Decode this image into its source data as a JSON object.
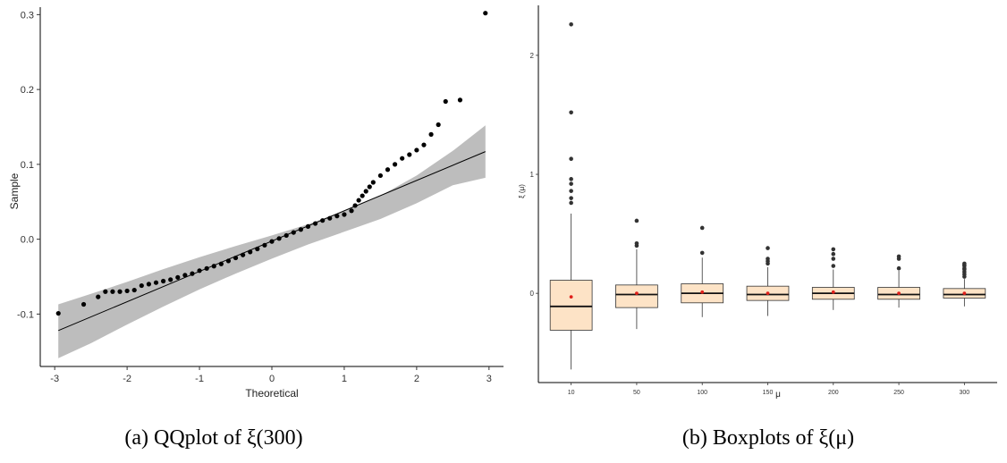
{
  "captions": {
    "left": "(a) QQplot of ξ(300)",
    "right": "(b) Boxplots of ξ(μ)"
  },
  "colors": {
    "points": "#000000",
    "band": "#bdbdbd",
    "line": "#000000",
    "box_fill": "#fde3c6",
    "mean": "#e0201b",
    "outlier": "#333333"
  },
  "chart_data": [
    {
      "type": "scatter",
      "xlabel": "Theoretical",
      "ylabel": "Sample",
      "xlim": [
        -3.2,
        3.2
      ],
      "ylim": [
        -0.17,
        0.31
      ],
      "xticks": [
        -3,
        -2,
        -1,
        0,
        1,
        2,
        3
      ],
      "yticks": [
        -0.1,
        0.0,
        0.1,
        0.2,
        0.3
      ],
      "ytick_labels": [
        "-0.1",
        "0.0",
        "0.1",
        "0.2",
        "0.3"
      ],
      "grid": false,
      "reference_line": {
        "x": [
          -2.95,
          2.95
        ],
        "y": [
          -0.122,
          0.117
        ]
      },
      "confidence_band": {
        "x": [
          -2.95,
          -2.5,
          -2.0,
          -1.5,
          -1.0,
          -0.5,
          0.0,
          0.5,
          1.0,
          1.5,
          2.0,
          2.5,
          2.95
        ],
        "upper": [
          -0.087,
          -0.073,
          -0.057,
          -0.04,
          -0.024,
          -0.009,
          0.005,
          0.02,
          0.038,
          0.058,
          0.085,
          0.118,
          0.152
        ],
        "lower": [
          -0.159,
          -0.139,
          -0.114,
          -0.09,
          -0.067,
          -0.046,
          -0.026,
          -0.007,
          0.01,
          0.027,
          0.048,
          0.072,
          0.082
        ]
      },
      "points": [
        [
          -2.95,
          -0.099
        ],
        [
          -2.6,
          -0.087
        ],
        [
          -2.4,
          -0.077
        ],
        [
          -2.3,
          -0.07
        ],
        [
          -2.2,
          -0.07
        ],
        [
          -2.1,
          -0.07
        ],
        [
          -2.0,
          -0.069
        ],
        [
          -1.9,
          -0.068
        ],
        [
          -1.8,
          -0.062
        ],
        [
          -1.7,
          -0.06
        ],
        [
          -1.6,
          -0.058
        ],
        [
          -1.5,
          -0.056
        ],
        [
          -1.4,
          -0.054
        ],
        [
          -1.3,
          -0.051
        ],
        [
          -1.2,
          -0.048
        ],
        [
          -1.1,
          -0.046
        ],
        [
          -1.0,
          -0.042
        ],
        [
          -0.9,
          -0.039
        ],
        [
          -0.8,
          -0.036
        ],
        [
          -0.7,
          -0.033
        ],
        [
          -0.6,
          -0.029
        ],
        [
          -0.5,
          -0.025
        ],
        [
          -0.4,
          -0.021
        ],
        [
          -0.3,
          -0.017
        ],
        [
          -0.2,
          -0.013
        ],
        [
          -0.1,
          -0.008
        ],
        [
          0.0,
          -0.003
        ],
        [
          0.1,
          0.001
        ],
        [
          0.2,
          0.005
        ],
        [
          0.3,
          0.009
        ],
        [
          0.4,
          0.013
        ],
        [
          0.5,
          0.017
        ],
        [
          0.6,
          0.021
        ],
        [
          0.7,
          0.025
        ],
        [
          0.8,
          0.028
        ],
        [
          0.9,
          0.031
        ],
        [
          1.0,
          0.033
        ],
        [
          1.1,
          0.038
        ],
        [
          1.15,
          0.045
        ],
        [
          1.2,
          0.052
        ],
        [
          1.25,
          0.058
        ],
        [
          1.3,
          0.064
        ],
        [
          1.35,
          0.07
        ],
        [
          1.4,
          0.076
        ],
        [
          1.5,
          0.085
        ],
        [
          1.6,
          0.093
        ],
        [
          1.7,
          0.1
        ],
        [
          1.8,
          0.108
        ],
        [
          1.9,
          0.113
        ],
        [
          2.0,
          0.119
        ],
        [
          2.1,
          0.126
        ],
        [
          2.2,
          0.14
        ],
        [
          2.3,
          0.153
        ],
        [
          2.4,
          0.184
        ],
        [
          2.6,
          0.186
        ],
        [
          2.95,
          0.302
        ]
      ]
    },
    {
      "type": "box",
      "xlabel": "μ",
      "ylabel": "ξ (μ)",
      "categories": [
        "10",
        "50",
        "100",
        "150",
        "200",
        "250",
        "300"
      ],
      "ylim": [
        -0.75,
        2.42
      ],
      "yticks": [
        0,
        1,
        2
      ],
      "ytick_labels": [
        "0",
        "1",
        "2"
      ],
      "grid": false,
      "boxes": [
        {
          "q1": -0.31,
          "median": -0.11,
          "q3": 0.11,
          "whisker_low": -0.64,
          "whisker_high": 0.67,
          "mean": -0.03,
          "outliers": [
            0.76,
            0.8,
            0.86,
            0.92,
            0.96,
            1.13,
            1.52,
            2.26
          ]
        },
        {
          "q1": -0.12,
          "median": -0.01,
          "q3": 0.07,
          "whisker_low": -0.3,
          "whisker_high": 0.37,
          "mean": 0.0,
          "outliers": [
            0.4,
            0.42,
            0.61
          ]
        },
        {
          "q1": -0.08,
          "median": 0.0,
          "q3": 0.08,
          "whisker_low": -0.2,
          "whisker_high": 0.3,
          "mean": 0.01,
          "outliers": [
            0.34,
            0.55
          ]
        },
        {
          "q1": -0.06,
          "median": -0.01,
          "q3": 0.06,
          "whisker_low": -0.19,
          "whisker_high": 0.22,
          "mean": 0.0,
          "outliers": [
            0.25,
            0.27,
            0.29,
            0.38
          ]
        },
        {
          "q1": -0.05,
          "median": 0.0,
          "q3": 0.05,
          "whisker_low": -0.14,
          "whisker_high": 0.2,
          "mean": 0.01,
          "outliers": [
            0.23,
            0.29,
            0.33,
            0.37
          ]
        },
        {
          "q1": -0.05,
          "median": -0.01,
          "q3": 0.05,
          "whisker_low": -0.12,
          "whisker_high": 0.19,
          "mean": 0.0,
          "outliers": [
            0.21,
            0.29,
            0.31
          ]
        },
        {
          "q1": -0.04,
          "median": -0.01,
          "q3": 0.04,
          "whisker_low": -0.11,
          "whisker_high": 0.12,
          "mean": 0.0,
          "outliers": [
            0.14,
            0.16,
            0.18,
            0.2,
            0.21,
            0.23,
            0.24,
            0.25
          ]
        }
      ]
    }
  ]
}
